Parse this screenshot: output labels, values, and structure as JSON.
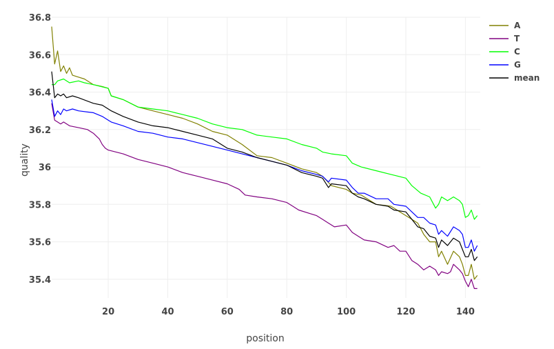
{
  "chart_data": {
    "type": "line",
    "title": "",
    "xlabel": "position",
    "ylabel": "quality",
    "xlim": [
      1,
      145
    ],
    "ylim": [
      35.3,
      36.8
    ],
    "xticks": [
      20,
      40,
      60,
      80,
      100,
      120,
      140
    ],
    "yticks": [
      35.4,
      35.6,
      35.8,
      36,
      36.2,
      36.4,
      36.6,
      36.8
    ],
    "ytick_labels": [
      "35.4",
      "35.6",
      "35.8",
      "36",
      "36.2",
      "36.4",
      "36.6",
      "36.8"
    ],
    "grid": true,
    "legend": "top-right",
    "series": [
      {
        "name": "A",
        "color": "#808000",
        "points": [
          [
            1,
            36.75
          ],
          [
            2,
            36.55
          ],
          [
            3,
            36.62
          ],
          [
            4,
            36.51
          ],
          [
            5,
            36.54
          ],
          [
            6,
            36.5
          ],
          [
            7,
            36.53
          ],
          [
            8,
            36.49
          ],
          [
            10,
            36.48
          ],
          [
            12,
            36.47
          ],
          [
            15,
            36.44
          ],
          [
            18,
            36.43
          ],
          [
            20,
            36.42
          ],
          [
            21,
            36.38
          ],
          [
            25,
            36.36
          ],
          [
            30,
            36.32
          ],
          [
            35,
            36.3
          ],
          [
            40,
            36.28
          ],
          [
            45,
            36.26
          ],
          [
            50,
            36.23
          ],
          [
            55,
            36.19
          ],
          [
            60,
            36.17
          ],
          [
            62,
            36.15
          ],
          [
            65,
            36.12
          ],
          [
            70,
            36.06
          ],
          [
            75,
            36.05
          ],
          [
            80,
            36.02
          ],
          [
            85,
            35.99
          ],
          [
            90,
            35.97
          ],
          [
            92,
            35.95
          ],
          [
            95,
            35.9
          ],
          [
            100,
            35.88
          ],
          [
            102,
            35.86
          ],
          [
            105,
            35.85
          ],
          [
            110,
            35.8
          ],
          [
            115,
            35.79
          ],
          [
            118,
            35.76
          ],
          [
            120,
            35.74
          ],
          [
            122,
            35.72
          ],
          [
            124,
            35.7
          ],
          [
            126,
            35.64
          ],
          [
            128,
            35.6
          ],
          [
            130,
            35.6
          ],
          [
            131,
            35.52
          ],
          [
            132,
            35.55
          ],
          [
            134,
            35.48
          ],
          [
            136,
            35.55
          ],
          [
            138,
            35.52
          ],
          [
            139,
            35.48
          ],
          [
            140,
            35.42
          ],
          [
            141,
            35.42
          ],
          [
            142,
            35.48
          ],
          [
            143,
            35.4
          ],
          [
            144,
            35.42
          ]
        ]
      },
      {
        "name": "T",
        "color": "#800080",
        "points": [
          [
            1,
            36.34
          ],
          [
            2,
            36.25
          ],
          [
            3,
            36.24
          ],
          [
            4,
            36.23
          ],
          [
            5,
            36.24
          ],
          [
            7,
            36.22
          ],
          [
            10,
            36.21
          ],
          [
            13,
            36.2
          ],
          [
            15,
            36.18
          ],
          [
            17,
            36.15
          ],
          [
            18,
            36.12
          ],
          [
            19,
            36.1
          ],
          [
            20,
            36.09
          ],
          [
            25,
            36.07
          ],
          [
            30,
            36.04
          ],
          [
            35,
            36.02
          ],
          [
            40,
            36.0
          ],
          [
            45,
            35.97
          ],
          [
            50,
            35.95
          ],
          [
            55,
            35.93
          ],
          [
            60,
            35.91
          ],
          [
            64,
            35.88
          ],
          [
            66,
            35.85
          ],
          [
            70,
            35.84
          ],
          [
            75,
            35.83
          ],
          [
            80,
            35.81
          ],
          [
            82,
            35.79
          ],
          [
            84,
            35.77
          ],
          [
            88,
            35.75
          ],
          [
            90,
            35.74
          ],
          [
            92,
            35.72
          ],
          [
            94,
            35.7
          ],
          [
            96,
            35.68
          ],
          [
            100,
            35.69
          ],
          [
            102,
            35.65
          ],
          [
            104,
            35.63
          ],
          [
            106,
            35.61
          ],
          [
            110,
            35.6
          ],
          [
            114,
            35.57
          ],
          [
            116,
            35.58
          ],
          [
            118,
            35.55
          ],
          [
            120,
            35.55
          ],
          [
            122,
            35.5
          ],
          [
            124,
            35.48
          ],
          [
            126,
            35.45
          ],
          [
            128,
            35.47
          ],
          [
            130,
            35.45
          ],
          [
            131,
            35.42
          ],
          [
            132,
            35.44
          ],
          [
            134,
            35.43
          ],
          [
            135,
            35.44
          ],
          [
            136,
            35.48
          ],
          [
            138,
            35.45
          ],
          [
            139,
            35.43
          ],
          [
            140,
            35.39
          ],
          [
            141,
            35.36
          ],
          [
            142,
            35.4
          ],
          [
            143,
            35.35
          ],
          [
            144,
            35.35
          ]
        ]
      },
      {
        "name": "C",
        "color": "#00ff00",
        "points": [
          [
            1,
            36.44
          ],
          [
            2,
            36.44
          ],
          [
            3,
            36.46
          ],
          [
            5,
            36.47
          ],
          [
            7,
            36.45
          ],
          [
            10,
            36.46
          ],
          [
            12,
            36.45
          ],
          [
            15,
            36.44
          ],
          [
            20,
            36.42
          ],
          [
            21,
            36.38
          ],
          [
            25,
            36.36
          ],
          [
            30,
            36.32
          ],
          [
            35,
            36.31
          ],
          [
            40,
            36.3
          ],
          [
            45,
            36.28
          ],
          [
            50,
            36.26
          ],
          [
            55,
            36.23
          ],
          [
            60,
            36.21
          ],
          [
            65,
            36.2
          ],
          [
            70,
            36.17
          ],
          [
            75,
            36.16
          ],
          [
            80,
            36.15
          ],
          [
            85,
            36.12
          ],
          [
            90,
            36.1
          ],
          [
            92,
            36.08
          ],
          [
            95,
            36.07
          ],
          [
            100,
            36.06
          ],
          [
            102,
            36.02
          ],
          [
            105,
            36.0
          ],
          [
            110,
            35.98
          ],
          [
            115,
            35.96
          ],
          [
            120,
            35.94
          ],
          [
            122,
            35.9
          ],
          [
            125,
            35.86
          ],
          [
            128,
            35.84
          ],
          [
            130,
            35.78
          ],
          [
            131,
            35.8
          ],
          [
            132,
            35.84
          ],
          [
            134,
            35.82
          ],
          [
            135,
            35.83
          ],
          [
            136,
            35.84
          ],
          [
            138,
            35.82
          ],
          [
            139,
            35.8
          ],
          [
            140,
            35.73
          ],
          [
            141,
            35.74
          ],
          [
            142,
            35.77
          ],
          [
            143,
            35.72
          ],
          [
            144,
            35.74
          ]
        ]
      },
      {
        "name": "G",
        "color": "#0000ff",
        "points": [
          [
            1,
            36.36
          ],
          [
            2,
            36.27
          ],
          [
            3,
            36.3
          ],
          [
            4,
            36.28
          ],
          [
            5,
            36.31
          ],
          [
            6,
            36.3
          ],
          [
            8,
            36.31
          ],
          [
            10,
            36.3
          ],
          [
            15,
            36.29
          ],
          [
            18,
            36.27
          ],
          [
            20,
            36.25
          ],
          [
            21,
            36.24
          ],
          [
            25,
            36.22
          ],
          [
            30,
            36.19
          ],
          [
            35,
            36.18
          ],
          [
            40,
            36.16
          ],
          [
            45,
            36.15
          ],
          [
            50,
            36.13
          ],
          [
            55,
            36.11
          ],
          [
            60,
            36.09
          ],
          [
            65,
            36.07
          ],
          [
            70,
            36.05
          ],
          [
            75,
            36.03
          ],
          [
            80,
            36.01
          ],
          [
            85,
            35.98
          ],
          [
            90,
            35.96
          ],
          [
            92,
            35.95
          ],
          [
            94,
            35.92
          ],
          [
            95,
            35.94
          ],
          [
            100,
            35.93
          ],
          [
            102,
            35.89
          ],
          [
            104,
            35.86
          ],
          [
            106,
            35.86
          ],
          [
            110,
            35.83
          ],
          [
            114,
            35.83
          ],
          [
            116,
            35.8
          ],
          [
            120,
            35.79
          ],
          [
            122,
            35.76
          ],
          [
            124,
            35.73
          ],
          [
            126,
            35.73
          ],
          [
            128,
            35.7
          ],
          [
            130,
            35.69
          ],
          [
            131,
            35.64
          ],
          [
            132,
            35.66
          ],
          [
            134,
            35.63
          ],
          [
            136,
            35.68
          ],
          [
            138,
            35.66
          ],
          [
            139,
            35.64
          ],
          [
            140,
            35.57
          ],
          [
            141,
            35.57
          ],
          [
            142,
            35.61
          ],
          [
            143,
            35.55
          ],
          [
            144,
            35.58
          ]
        ]
      },
      {
        "name": "mean",
        "color": "#000000",
        "points": [
          [
            1,
            36.51
          ],
          [
            2,
            36.37
          ],
          [
            3,
            36.39
          ],
          [
            4,
            36.38
          ],
          [
            5,
            36.39
          ],
          [
            6,
            36.37
          ],
          [
            8,
            36.38
          ],
          [
            10,
            36.37
          ],
          [
            15,
            36.34
          ],
          [
            18,
            36.33
          ],
          [
            20,
            36.31
          ],
          [
            21,
            36.3
          ],
          [
            25,
            36.27
          ],
          [
            30,
            36.24
          ],
          [
            35,
            36.22
          ],
          [
            40,
            36.21
          ],
          [
            45,
            36.19
          ],
          [
            50,
            36.17
          ],
          [
            55,
            36.15
          ],
          [
            60,
            36.1
          ],
          [
            65,
            36.08
          ],
          [
            70,
            36.05
          ],
          [
            75,
            36.03
          ],
          [
            80,
            36.01
          ],
          [
            85,
            35.97
          ],
          [
            90,
            35.95
          ],
          [
            92,
            35.94
          ],
          [
            94,
            35.89
          ],
          [
            95,
            35.91
          ],
          [
            100,
            35.9
          ],
          [
            102,
            35.86
          ],
          [
            104,
            35.84
          ],
          [
            106,
            35.83
          ],
          [
            110,
            35.8
          ],
          [
            114,
            35.79
          ],
          [
            116,
            35.77
          ],
          [
            120,
            35.76
          ],
          [
            122,
            35.72
          ],
          [
            124,
            35.68
          ],
          [
            126,
            35.67
          ],
          [
            128,
            35.63
          ],
          [
            130,
            35.62
          ],
          [
            131,
            35.57
          ],
          [
            132,
            35.61
          ],
          [
            134,
            35.58
          ],
          [
            136,
            35.62
          ],
          [
            138,
            35.6
          ],
          [
            139,
            35.56
          ],
          [
            140,
            35.52
          ],
          [
            141,
            35.52
          ],
          [
            142,
            35.56
          ],
          [
            143,
            35.5
          ],
          [
            144,
            35.52
          ]
        ]
      }
    ]
  }
}
